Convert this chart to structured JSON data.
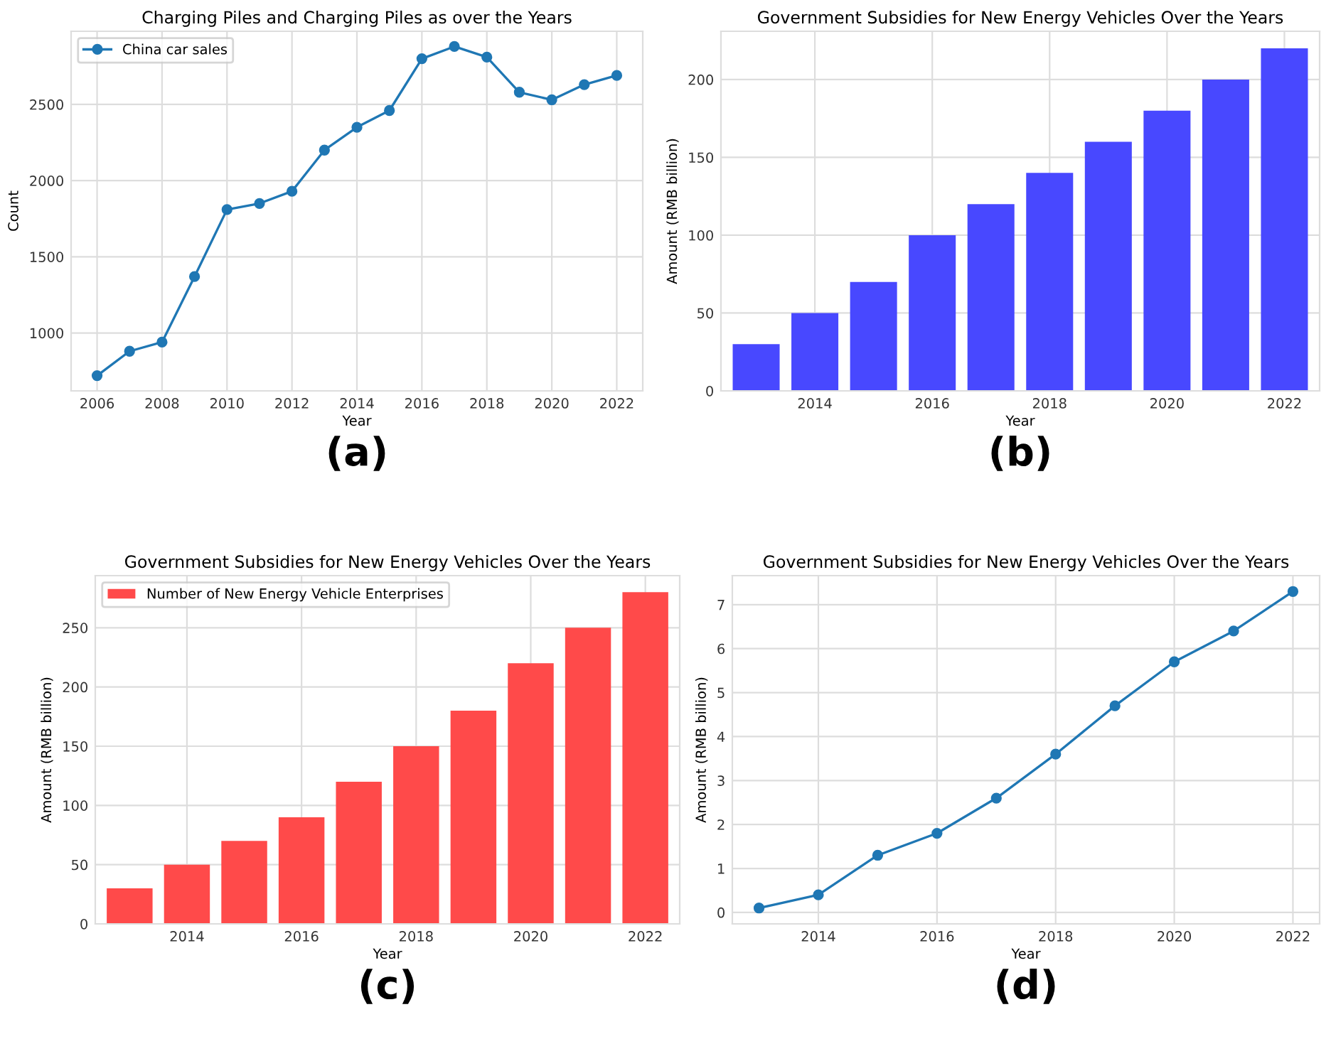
{
  "chart_data": [
    {
      "type": "line",
      "title": "Charging Piles and Charging Piles as over the Years",
      "xlabel": "Year",
      "ylabel": "Count",
      "x": [
        2006,
        2007,
        2008,
        2009,
        2010,
        2011,
        2012,
        2013,
        2014,
        2015,
        2016,
        2017,
        2018,
        2019,
        2020,
        2021,
        2022
      ],
      "series": [
        {
          "name": "China car sales",
          "color": "#1f77b4",
          "values": [
            720,
            880,
            940,
            1370,
            1810,
            1850,
            1930,
            2200,
            2350,
            2460,
            2800,
            2880,
            2810,
            2580,
            2530,
            2630,
            2690
          ]
        }
      ],
      "xlim": [
        2005.2,
        2022.8
      ],
      "xticks": [
        2006,
        2008,
        2010,
        2012,
        2014,
        2016,
        2018,
        2020,
        2022
      ],
      "ylim": [
        620,
        2980
      ],
      "yticks": [
        1000,
        1500,
        2000,
        2500
      ],
      "grid": true,
      "legend": "top left",
      "marker": "circle",
      "annotations": [
        "(a)"
      ]
    },
    {
      "type": "bar",
      "title": "Government Subsidies for New Energy Vehicles Over the Years",
      "xlabel": "Year",
      "ylabel": "Amount (RMB billion)",
      "x": [
        2013,
        2014,
        2015,
        2016,
        2017,
        2018,
        2019,
        2020,
        2021,
        2022
      ],
      "series": [
        {
          "color": "#4848ff",
          "values": [
            30,
            50,
            70,
            100,
            120,
            140,
            160,
            180,
            200,
            220
          ]
        }
      ],
      "xlim": [
        2012.4,
        2022.6
      ],
      "xticks": [
        2014,
        2016,
        2018,
        2020,
        2022
      ],
      "ylim": [
        0,
        231
      ],
      "yticks": [
        0,
        50,
        100,
        150,
        200
      ],
      "grid": true,
      "annotations": [
        "(b)"
      ]
    },
    {
      "type": "bar",
      "title": "Government Subsidies for New Energy Vehicles Over the Years",
      "xlabel": "Year",
      "ylabel": "Amount (RMB billion)",
      "x": [
        2013,
        2014,
        2015,
        2016,
        2017,
        2018,
        2019,
        2020,
        2021,
        2022
      ],
      "series": [
        {
          "name": "Number of New Energy Vehicle Enterprises",
          "color": "#ff4a4a",
          "values": [
            30,
            50,
            70,
            90,
            120,
            150,
            180,
            220,
            250,
            280
          ]
        }
      ],
      "xlim": [
        2012.4,
        2022.6
      ],
      "xticks": [
        2014,
        2016,
        2018,
        2020,
        2022
      ],
      "ylim": [
        0,
        294
      ],
      "yticks": [
        0,
        50,
        100,
        150,
        200,
        250
      ],
      "grid": true,
      "legend": "top left",
      "annotations": [
        "(c)"
      ]
    },
    {
      "type": "line",
      "title": "Government Subsidies for New Energy Vehicles Over the Years",
      "xlabel": "Year",
      "ylabel": "Amount (RMB billion)",
      "x": [
        2013,
        2014,
        2015,
        2016,
        2017,
        2018,
        2019,
        2020,
        2021,
        2022
      ],
      "series": [
        {
          "color": "#1f77b4",
          "values": [
            0.1,
            0.4,
            1.3,
            1.8,
            2.6,
            3.6,
            4.7,
            5.7,
            6.4,
            7.3
          ]
        }
      ],
      "xlim": [
        2012.55,
        2022.45
      ],
      "xticks": [
        2014,
        2016,
        2018,
        2020,
        2022
      ],
      "ylim": [
        -0.26,
        7.66
      ],
      "yticks": [
        0,
        1,
        2,
        3,
        4,
        5,
        6,
        7
      ],
      "grid": true,
      "marker": "circle",
      "annotations": [
        "(d)"
      ]
    }
  ]
}
